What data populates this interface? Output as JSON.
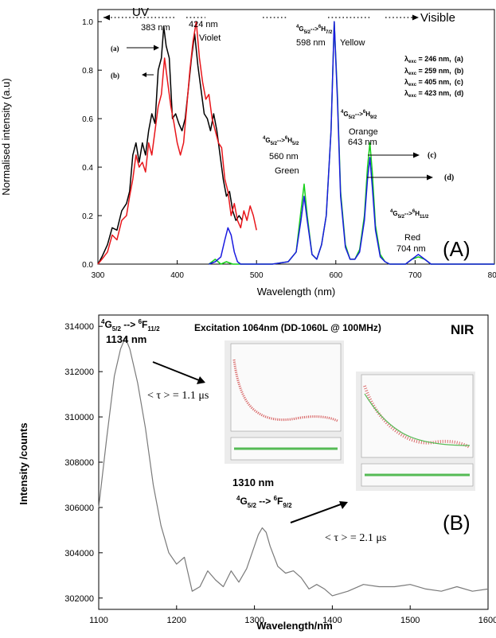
{
  "panels": {
    "a": {
      "panel_label": "(A)",
      "band_left": "UV",
      "band_right": "Visible",
      "ylabel": "Normalised intensity (a.u)",
      "xlabel": "Wavelength (nm)",
      "legend": [
        {
          "lambda": "λ",
          "sub": "exc",
          "text": " = 246 nm,",
          "tag": "(a)"
        },
        {
          "lambda": "λ",
          "sub": "exc",
          "text": " = 259 nm,",
          "tag": "(b)"
        },
        {
          "lambda": "λ",
          "sub": "exc",
          "text": " = 405 nm,",
          "tag": "(c)"
        },
        {
          "lambda": "λ",
          "sub": "exc",
          "text": " = 423 nm,",
          "tag": "(d)"
        }
      ],
      "annotations": {
        "a_tag": "(a)",
        "b_tag": "(b)",
        "c_tag": "(c)",
        "d_tag": "(d)",
        "p383": "383 nm",
        "p424": "424 nm",
        "violet": "Violet",
        "p598": "598 nm",
        "yellow": "Yellow",
        "t598_g": "G",
        "t598_gsub": "5/2",
        "t598_arrow": "-->",
        "t598_h": "H",
        "t598_hsub": "7/2",
        "p560": "560 nm",
        "green": "Green",
        "t560_g": "G",
        "t560_gsub": "5/2",
        "t560_arrow": "-->",
        "t560_h": "H",
        "t560_hsub": "5/2",
        "p643": "643 nm",
        "orange": "Orange",
        "t643_g": "G",
        "t643_gsub": "5/2",
        "t643_arrow": "-->",
        "t643_h": "H",
        "t643_hsub": "9/2",
        "p704": "704 nm",
        "red": "Red",
        "t704_g": "G",
        "t704_gsub": "5/2",
        "t704_arrow": "-->",
        "t704_h": "H",
        "t704_hsub": "11/2",
        "sup4": "4",
        "sup6": "6"
      }
    },
    "b": {
      "panel_label": "(B)",
      "title": "Excitation 1064nm (DD-1060L @ 100MHz)",
      "nir": "NIR",
      "ylabel": "Intensity /counts",
      "xlabel": "Wavelength/nm",
      "peak1_transition": {
        "sup1": "4",
        "g": "G",
        "gsub": "5/2",
        "arrow": " --> ",
        "sup2": "6",
        "f": "F",
        "fsub": "11/2"
      },
      "peak1_nm": "1134 nm",
      "tau1": "< τ > = 1.1 μs",
      "peak2_nm": "1310 nm",
      "peak2_transition": {
        "sup1": "4",
        "g": "G",
        "gsub": "5/2",
        "arrow": " --> ",
        "sup2": "6",
        "f": "F",
        "fsub": "9/2"
      },
      "tau2": "< τ > = 2.1 μs"
    }
  },
  "colors": {
    "curve_a": "#000000",
    "curve_b": "#e8161b",
    "curve_c": "#16d019",
    "curve_d": "#1a1ae0",
    "curve_nir": "#7a7a7a",
    "inset_bg": "#ececec",
    "inset_red": "#d96a6a",
    "inset_green": "#55bb55"
  },
  "chart_data": [
    {
      "type": "line",
      "title": "",
      "xlabel": "Wavelength (nm)",
      "ylabel": "Normalised intensity (a.u)",
      "xlim": [
        300,
        800
      ],
      "ylim": [
        0,
        1.05
      ],
      "xticks": [
        300,
        400,
        500,
        600,
        700,
        800
      ],
      "yticks": [
        0.0,
        0.2,
        0.4,
        0.6,
        0.8,
        1.0
      ],
      "series": [
        {
          "name": "(a)",
          "color": "#000000",
          "x": [
            300,
            305,
            312,
            318,
            324,
            330,
            336,
            340,
            344,
            348,
            352,
            356,
            360,
            364,
            368,
            372,
            376,
            380,
            383,
            386,
            390,
            394,
            398,
            402,
            406,
            410,
            414,
            418,
            422,
            426,
            430,
            434,
            438,
            442,
            446,
            450,
            454,
            458,
            462,
            466,
            470,
            474,
            478,
            482
          ],
          "y": [
            0.0,
            0.03,
            0.08,
            0.15,
            0.14,
            0.22,
            0.25,
            0.3,
            0.45,
            0.5,
            0.42,
            0.5,
            0.45,
            0.55,
            0.62,
            0.58,
            0.8,
            0.85,
            0.98,
            0.9,
            0.85,
            0.6,
            0.62,
            0.58,
            0.55,
            0.6,
            0.72,
            0.85,
            0.95,
            0.82,
            0.72,
            0.62,
            0.6,
            0.55,
            0.62,
            0.55,
            0.45,
            0.35,
            0.28,
            0.3,
            0.22,
            0.18,
            0.2,
            0.18
          ]
        },
        {
          "name": "(b)",
          "color": "#e8161b",
          "x": [
            300,
            305,
            312,
            318,
            324,
            330,
            336,
            340,
            344,
            348,
            352,
            356,
            360,
            364,
            368,
            372,
            376,
            380,
            384,
            388,
            392,
            396,
            400,
            404,
            408,
            412,
            416,
            420,
            424,
            428,
            432,
            436,
            440,
            444,
            448,
            452,
            456,
            460,
            464,
            468,
            472,
            476,
            480,
            484,
            488,
            492,
            496,
            500
          ],
          "y": [
            0.0,
            0.02,
            0.05,
            0.12,
            0.1,
            0.18,
            0.2,
            0.28,
            0.35,
            0.45,
            0.4,
            0.42,
            0.38,
            0.5,
            0.45,
            0.55,
            0.65,
            0.7,
            0.85,
            0.75,
            0.65,
            0.58,
            0.5,
            0.45,
            0.5,
            0.65,
            0.8,
            0.92,
            1.0,
            0.85,
            0.75,
            0.68,
            0.7,
            0.6,
            0.55,
            0.5,
            0.48,
            0.35,
            0.3,
            0.2,
            0.25,
            0.18,
            0.15,
            0.22,
            0.18,
            0.24,
            0.2,
            0.14
          ]
        },
        {
          "name": "(c)",
          "color": "#16d019",
          "x": [
            440,
            448,
            455,
            462,
            470,
            480,
            500,
            520,
            540,
            550,
            556,
            560,
            564,
            570,
            576,
            582,
            588,
            594,
            598,
            602,
            606,
            612,
            618,
            624,
            630,
            636,
            640,
            643,
            646,
            650,
            656,
            662,
            668,
            674,
            680,
            688,
            696,
            704,
            712,
            720,
            730,
            760,
            800
          ],
          "y": [
            0.0,
            0.02,
            0.0,
            0.01,
            0.0,
            0.0,
            0.0,
            0.0,
            0.01,
            0.05,
            0.22,
            0.33,
            0.2,
            0.04,
            0.02,
            0.08,
            0.2,
            0.55,
            1.0,
            0.7,
            0.3,
            0.08,
            0.02,
            0.02,
            0.06,
            0.2,
            0.4,
            0.5,
            0.38,
            0.16,
            0.04,
            0.01,
            0.0,
            0.0,
            0.0,
            0.0,
            0.02,
            0.03,
            0.02,
            0.0,
            0.0,
            0.0,
            0.0
          ]
        },
        {
          "name": "(d)",
          "color": "#1a1ae0",
          "x": [
            440,
            448,
            455,
            460,
            464,
            468,
            472,
            476,
            480,
            500,
            520,
            540,
            550,
            556,
            560,
            564,
            570,
            576,
            582,
            588,
            594,
            598,
            602,
            606,
            612,
            618,
            624,
            630,
            636,
            640,
            643,
            646,
            650,
            656,
            662,
            668,
            674,
            680,
            688,
            696,
            704,
            712,
            720,
            730,
            760,
            800
          ],
          "y": [
            0.0,
            0.01,
            0.03,
            0.1,
            0.15,
            0.12,
            0.05,
            0.01,
            0.0,
            0.0,
            0.0,
            0.01,
            0.05,
            0.18,
            0.28,
            0.18,
            0.04,
            0.02,
            0.08,
            0.2,
            0.55,
            1.0,
            0.68,
            0.28,
            0.07,
            0.02,
            0.02,
            0.05,
            0.18,
            0.35,
            0.44,
            0.32,
            0.14,
            0.03,
            0.01,
            0.0,
            0.0,
            0.0,
            0.0,
            0.02,
            0.04,
            0.02,
            0.0,
            0.0,
            0.0,
            0.0
          ]
        }
      ]
    },
    {
      "type": "line",
      "title": "Excitation 1064nm (DD-1060L @ 100MHz)",
      "xlabel": "Wavelength/nm",
      "ylabel": "Intensity /counts",
      "xlim": [
        1100,
        1600
      ],
      "ylim": [
        301500,
        314500
      ],
      "xticks": [
        1100,
        1200,
        1300,
        1400,
        1500,
        1600
      ],
      "yticks": [
        302000,
        304000,
        306000,
        308000,
        310000,
        312000,
        314000
      ],
      "series": [
        {
          "name": "",
          "color": "#7a7a7a",
          "x": [
            1100,
            1110,
            1120,
            1128,
            1134,
            1140,
            1150,
            1160,
            1170,
            1180,
            1190,
            1200,
            1210,
            1220,
            1230,
            1240,
            1250,
            1260,
            1270,
            1280,
            1290,
            1300,
            1305,
            1310,
            1315,
            1320,
            1330,
            1340,
            1350,
            1360,
            1370,
            1380,
            1390,
            1400,
            1420,
            1440,
            1460,
            1480,
            1500,
            1520,
            1540,
            1560,
            1580,
            1600
          ],
          "y": [
            306000,
            309000,
            311800,
            313000,
            313500,
            313000,
            311500,
            309500,
            307000,
            305200,
            304000,
            303500,
            303800,
            302300,
            302500,
            303200,
            302800,
            302500,
            303200,
            302700,
            303300,
            304300,
            304800,
            305100,
            304900,
            304300,
            303400,
            303100,
            303200,
            302900,
            302400,
            302600,
            302400,
            302100,
            302300,
            302600,
            302500,
            302500,
            302600,
            302400,
            302300,
            302500,
            302300,
            302400
          ]
        }
      ]
    }
  ]
}
